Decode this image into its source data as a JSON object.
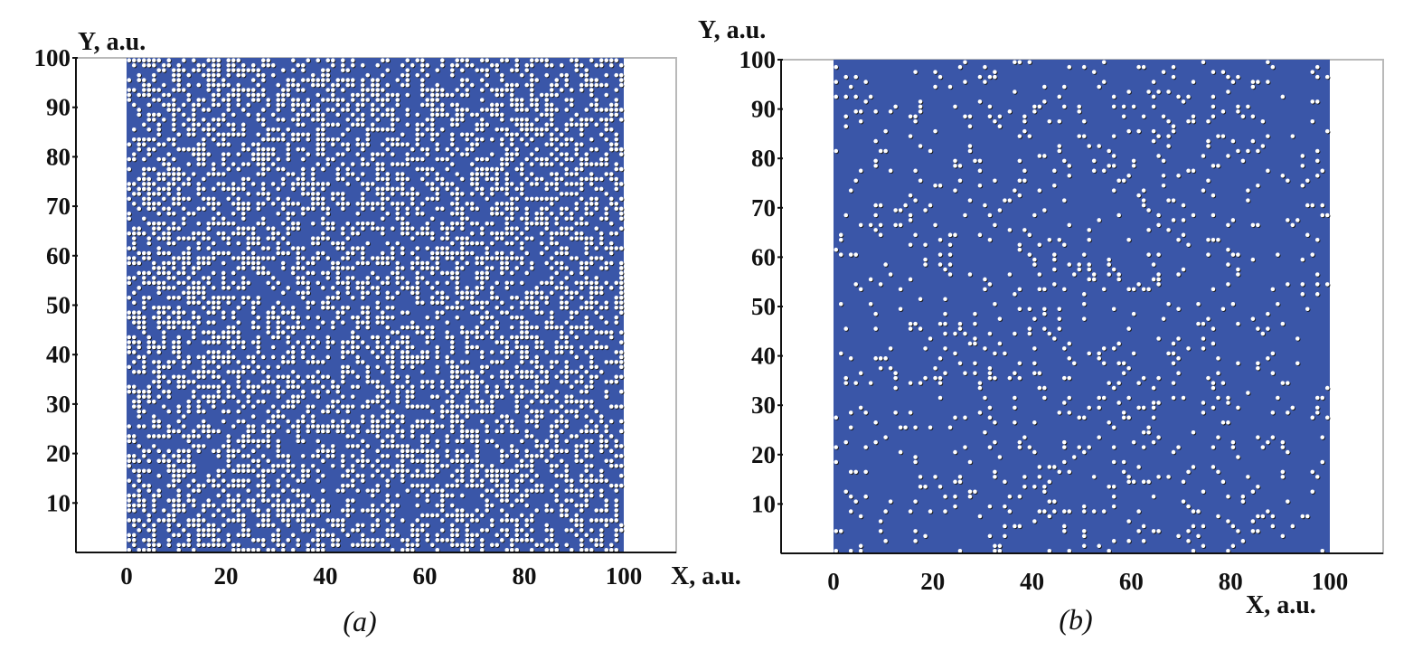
{
  "figure": {
    "panels": [
      {
        "caption": "(a)",
        "xlabel": "X, a.u.",
        "ylabel": "Y, a.u."
      },
      {
        "caption": "(b)",
        "xlabel": "X, a.u.",
        "ylabel": "Y, a.u."
      }
    ]
  },
  "colors": {
    "background_field": "#3a56a8",
    "particle": "#ffffff",
    "particle_shadow": "#1a1a1a"
  },
  "chart_data": [
    {
      "type": "scatter",
      "panel": "(a)",
      "xlabel": "X, a.u.",
      "ylabel": "Y, a.u.",
      "xlim": [
        0,
        100
      ],
      "ylim": [
        0,
        100
      ],
      "xticks": [
        "0",
        "20",
        "40",
        "60",
        "80",
        "100"
      ],
      "yticks": [
        "10",
        "20",
        "30",
        "40",
        "50",
        "60",
        "70",
        "80",
        "90",
        "100"
      ],
      "lattice": {
        "nx": 100,
        "ny": 100
      },
      "occupancy_fraction": 0.45,
      "random_seed": 7,
      "grid": false
    },
    {
      "type": "scatter",
      "panel": "(b)",
      "xlabel": "X, a.u.",
      "ylabel": "Y, a.u.",
      "xlim": [
        0,
        100
      ],
      "ylim": [
        0,
        100
      ],
      "xticks": [
        "0",
        "20",
        "40",
        "60",
        "80",
        "100"
      ],
      "yticks": [
        "10",
        "20",
        "30",
        "40",
        "50",
        "60",
        "70",
        "80",
        "90",
        "100"
      ],
      "lattice": {
        "nx": 100,
        "ny": 100
      },
      "occupancy_fraction": 0.09,
      "random_seed": 19,
      "grid": false
    }
  ]
}
